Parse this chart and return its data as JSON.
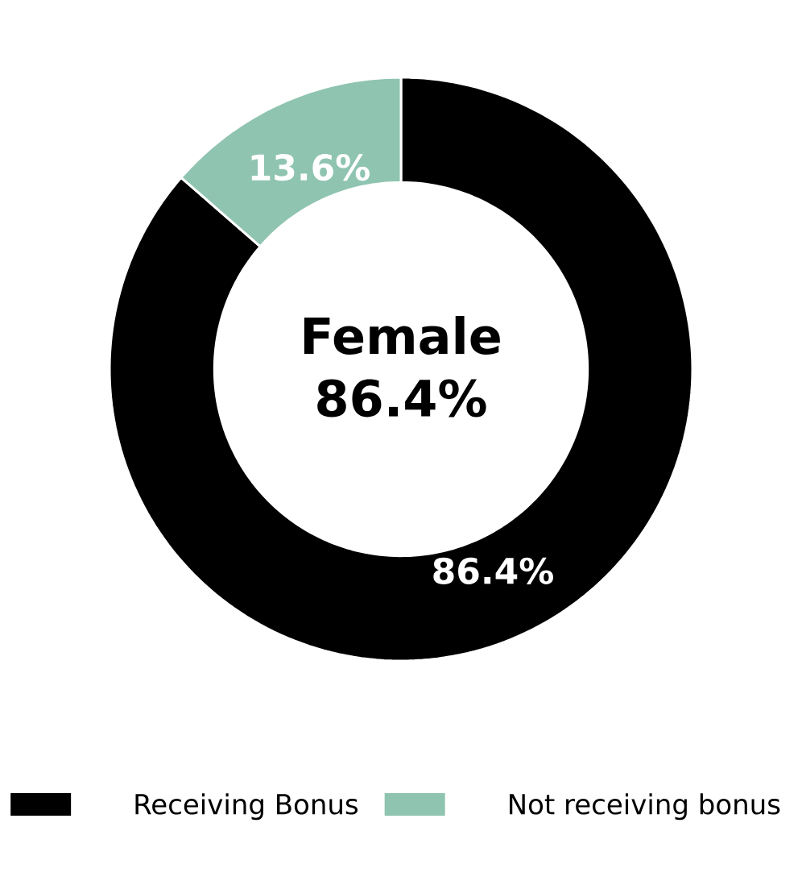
{
  "chart_data": {
    "type": "donut",
    "categories": [
      "Receiving Bonus",
      "Not receiving bonus"
    ],
    "values": [
      86.4,
      13.6
    ],
    "colors": [
      "#000000",
      "#8fc4b1"
    ],
    "value_labels": [
      "86.4%",
      "13.6%"
    ],
    "annotations": [
      "Female",
      "86.4%"
    ],
    "legend": "bottom"
  }
}
